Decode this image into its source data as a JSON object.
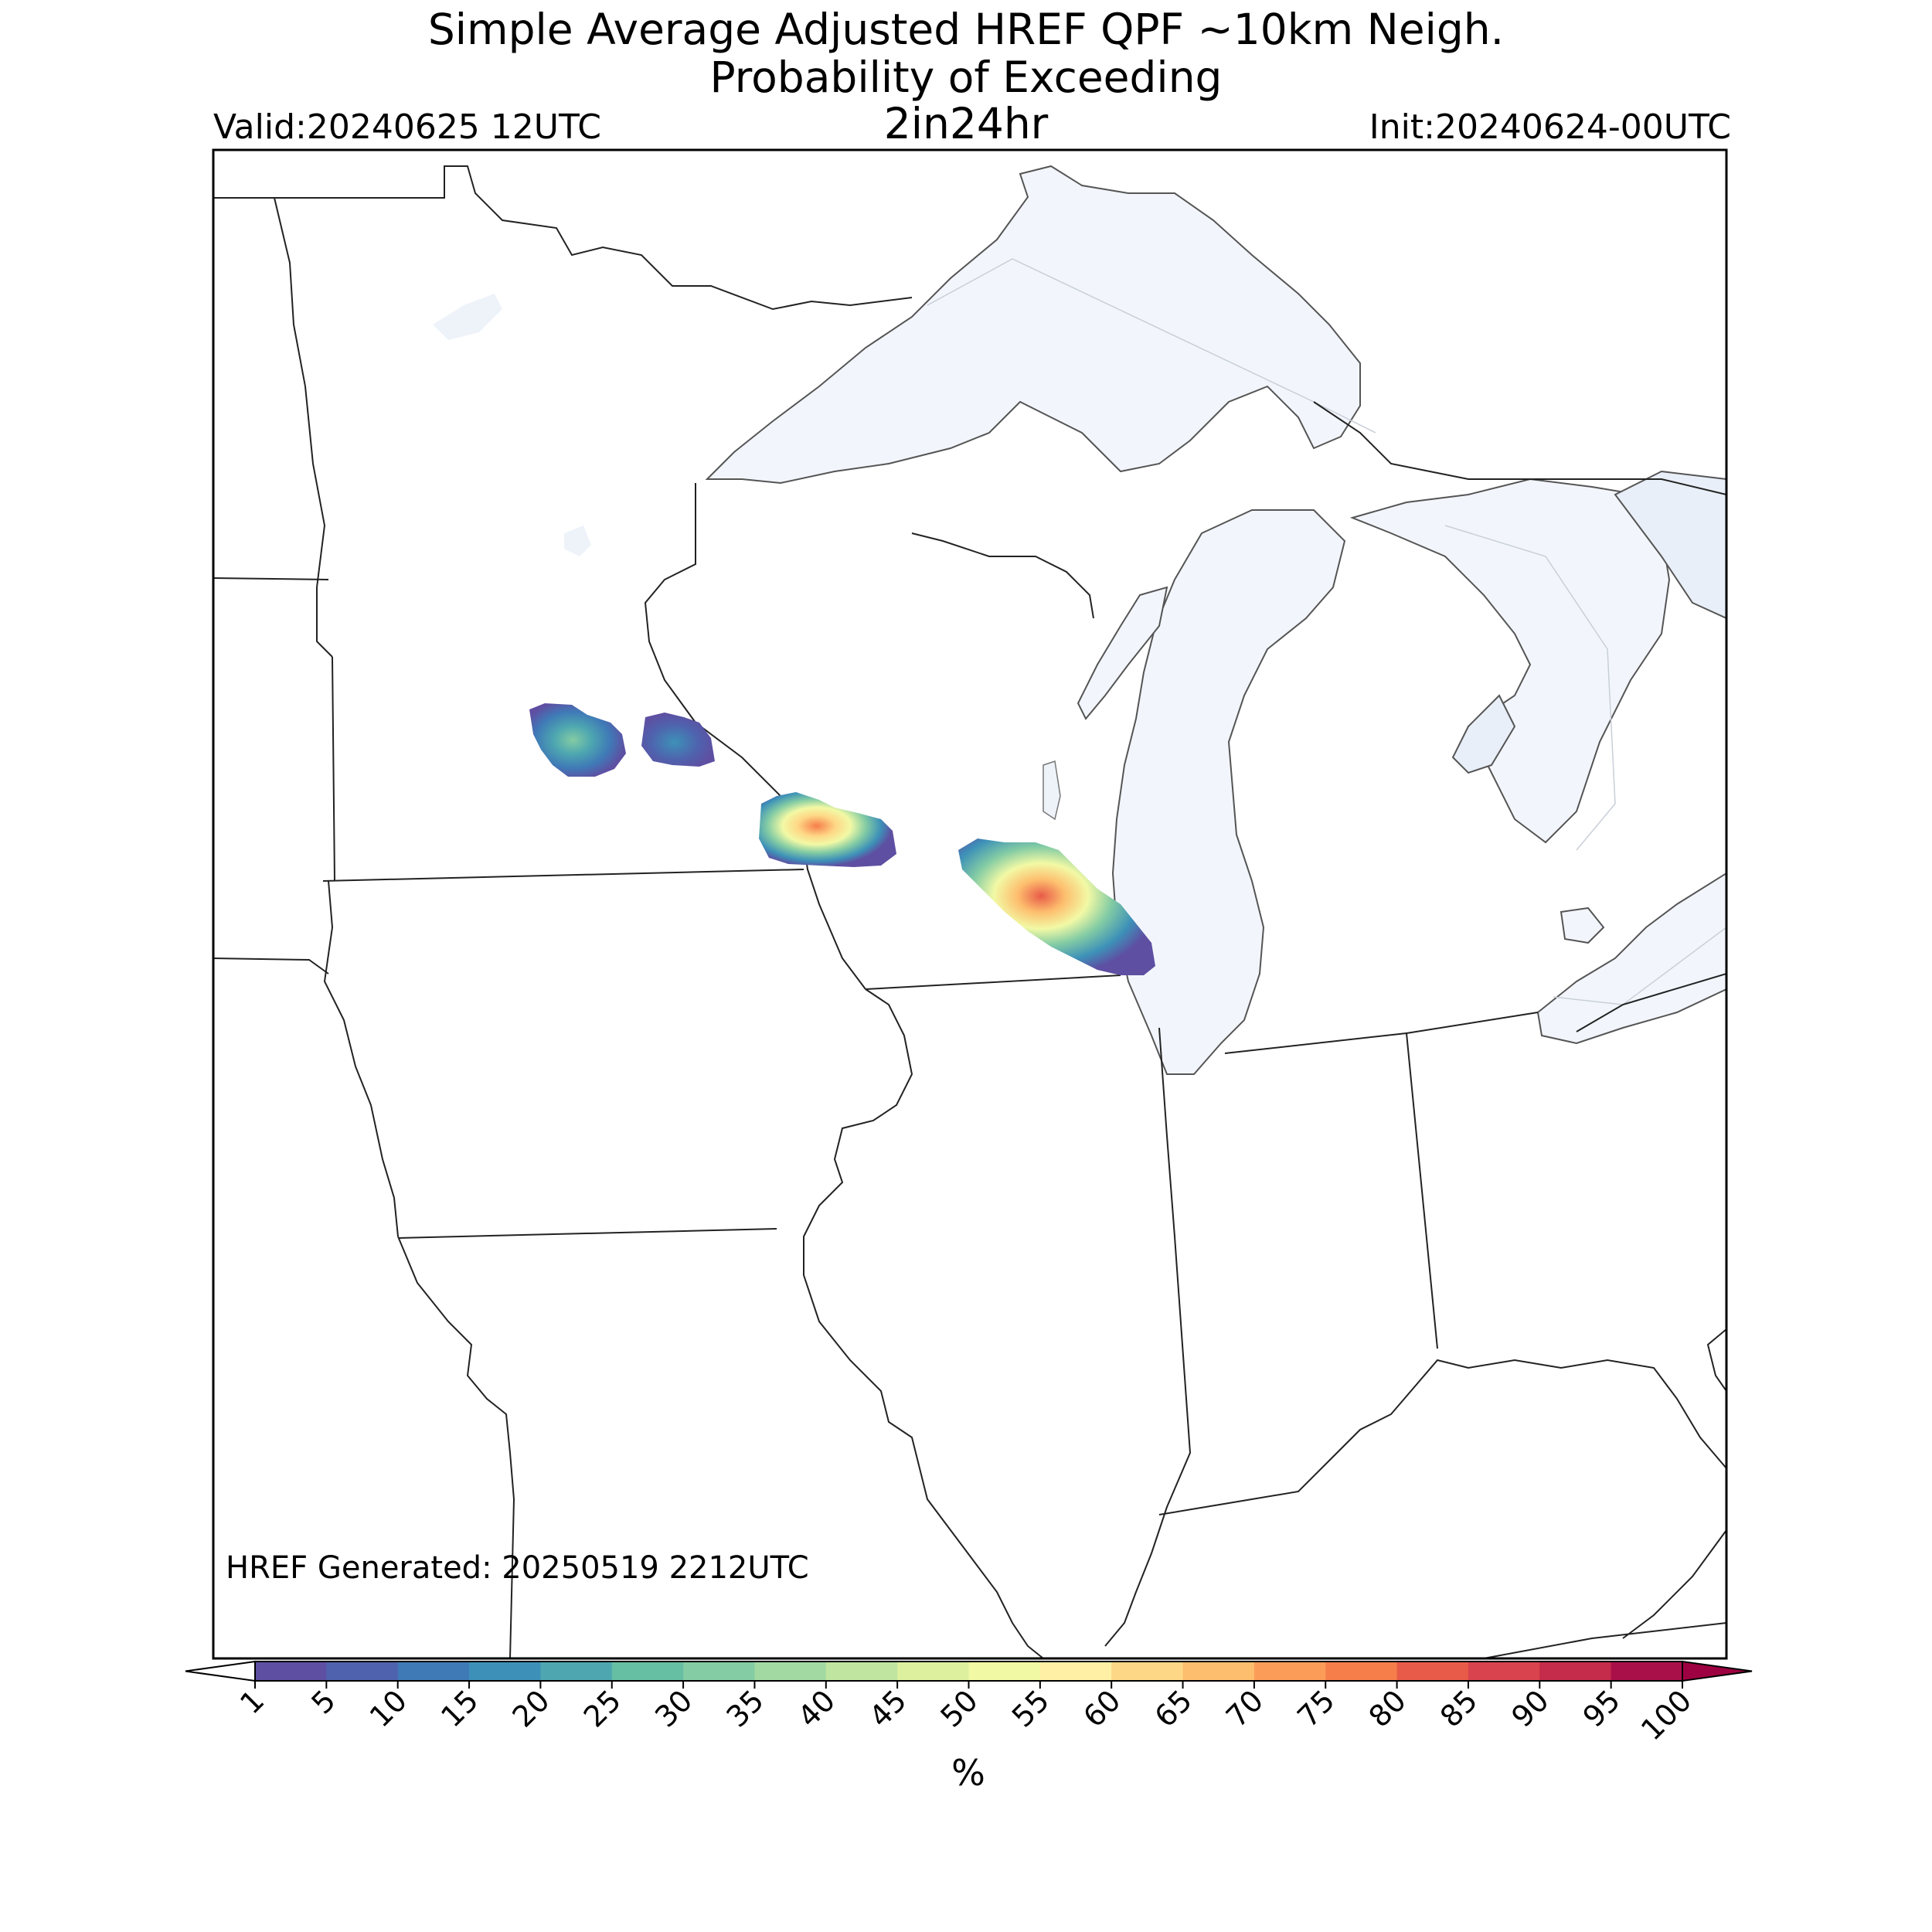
{
  "header": {
    "title_line1": "Simple Average Adjusted HREF QPF ~10km Neigh.",
    "title_line2": "Probability of Exceeding",
    "threshold": "2in24hr",
    "valid": "Valid:20240625 12UTC",
    "init": "Init:20240624-00UTC"
  },
  "map": {
    "generated": "HREF Generated: 20250519 2212UTC",
    "water_color": "#f2f6fc",
    "border_color": "#222222"
  },
  "colorbar": {
    "label": "%",
    "levels": [
      1,
      5,
      10,
      15,
      20,
      25,
      30,
      35,
      40,
      45,
      50,
      55,
      60,
      65,
      70,
      75,
      80,
      85,
      90,
      95,
      100
    ],
    "tick_labels": [
      "1",
      "5",
      "10",
      "15",
      "20",
      "25",
      "30",
      "35",
      "40",
      "45",
      "50",
      "55",
      "60",
      "65",
      "70",
      "75",
      "80",
      "85",
      "90",
      "95",
      "100"
    ],
    "colors": [
      "#5e4fa2",
      "#4f62ad",
      "#3f7ab7",
      "#3d91b8",
      "#4ea7b0",
      "#66bea3",
      "#84cca4",
      "#a2d9a3",
      "#bfe5a0",
      "#dcf09e",
      "#f2f9a5",
      "#fff0a6",
      "#fed786",
      "#fdbe6e",
      "#fb9d59",
      "#f67e4b",
      "#e85b48",
      "#d9434d",
      "#c52b4a",
      "#a9104a"
    ],
    "under_color": "#ffffff",
    "over_color": "#9e0142"
  }
}
